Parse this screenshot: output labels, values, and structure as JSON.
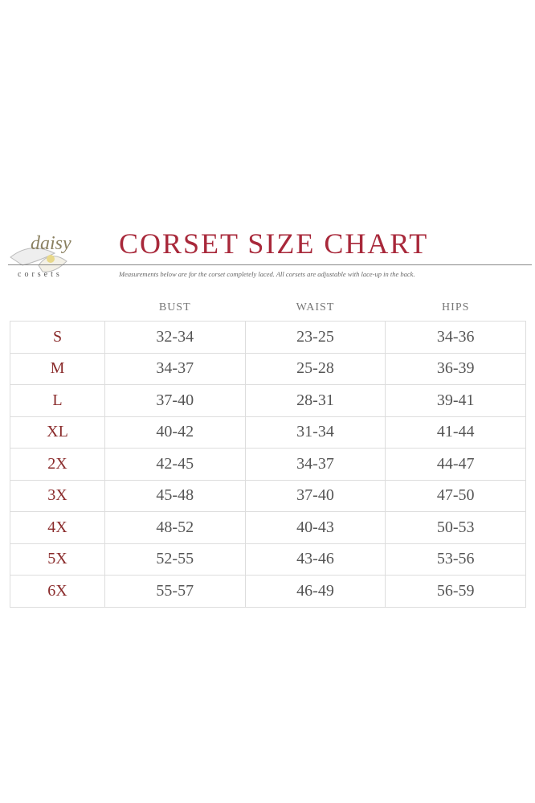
{
  "header": {
    "title": "CORSET SIZE CHART",
    "brand": "corsets",
    "logo_text": "daisy",
    "note": "Measurements below are for the corset completely laced.  All corsets are adjustable with lace-up in the back."
  },
  "colors": {
    "title": "#a8283a",
    "size_label": "#8a2b2b",
    "value": "#555555"
  },
  "table": {
    "columns": [
      "BUST",
      "WAIST",
      "HIPS"
    ],
    "rows": [
      {
        "size": "S",
        "bust": "32-34",
        "waist": "23-25",
        "hips": "34-36"
      },
      {
        "size": "M",
        "bust": "34-37",
        "waist": "25-28",
        "hips": "36-39"
      },
      {
        "size": "L",
        "bust": "37-40",
        "waist": "28-31",
        "hips": "39-41"
      },
      {
        "size": "XL",
        "bust": "40-42",
        "waist": "31-34",
        "hips": "41-44"
      },
      {
        "size": "2X",
        "bust": "42-45",
        "waist": "34-37",
        "hips": "44-47"
      },
      {
        "size": "3X",
        "bust": "45-48",
        "waist": "37-40",
        "hips": "47-50"
      },
      {
        "size": "4X",
        "bust": "48-52",
        "waist": "40-43",
        "hips": "50-53"
      },
      {
        "size": "5X",
        "bust": "52-55",
        "waist": "43-46",
        "hips": "53-56"
      },
      {
        "size": "6X",
        "bust": "55-57",
        "waist": "46-49",
        "hips": "56-59"
      }
    ]
  }
}
